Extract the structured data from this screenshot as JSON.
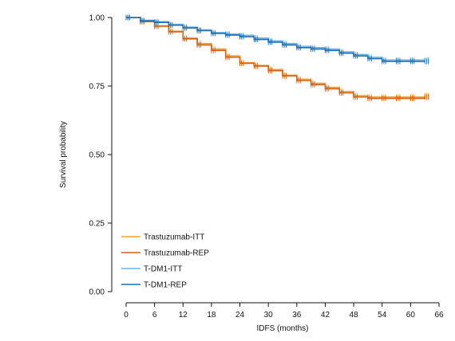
{
  "chart_data": {
    "type": "line",
    "xlabel": "IDFS (months)",
    "ylabel": "Survival probability",
    "xlim": [
      0,
      66
    ],
    "ylim": [
      0,
      1
    ],
    "x_ticks": [
      "0",
      "6",
      "12",
      "18",
      "24",
      "30",
      "36",
      "42",
      "48",
      "54",
      "60",
      "66"
    ],
    "y_ticks": [
      "0.00",
      "0.25",
      "0.50",
      "0.75",
      "1.00"
    ],
    "grid": false,
    "legend_position": "bottom-left",
    "series": [
      {
        "name": "Trastuzumab-ITT",
        "color": "#f0a030",
        "x": [
          0,
          3,
          6,
          9,
          12,
          15,
          18,
          21,
          24,
          27,
          30,
          33,
          36,
          39,
          42,
          45,
          48,
          51,
          54,
          57,
          60,
          63
        ],
        "y": [
          1.0,
          0.985,
          0.97,
          0.95,
          0.925,
          0.905,
          0.885,
          0.86,
          0.835,
          0.825,
          0.81,
          0.79,
          0.775,
          0.76,
          0.745,
          0.73,
          0.715,
          0.71,
          0.71,
          0.71,
          0.71,
          0.715
        ]
      },
      {
        "name": "Trastuzumab-REP",
        "color": "#d4601a",
        "x": [
          0,
          3,
          6,
          9,
          12,
          15,
          18,
          21,
          24,
          27,
          30,
          33,
          36,
          39,
          42,
          45,
          48,
          51,
          54,
          57,
          60,
          63
        ],
        "y": [
          1.0,
          0.985,
          0.968,
          0.948,
          0.922,
          0.9,
          0.88,
          0.855,
          0.833,
          0.823,
          0.806,
          0.787,
          0.77,
          0.755,
          0.74,
          0.725,
          0.71,
          0.705,
          0.705,
          0.705,
          0.705,
          0.71
        ]
      },
      {
        "name": "T-DM1-ITT",
        "color": "#6ab4e8",
        "x": [
          0,
          3,
          6,
          9,
          12,
          15,
          18,
          21,
          24,
          27,
          30,
          33,
          36,
          39,
          42,
          45,
          48,
          51,
          54,
          57,
          60,
          63
        ],
        "y": [
          1.0,
          0.99,
          0.985,
          0.975,
          0.965,
          0.955,
          0.945,
          0.94,
          0.935,
          0.925,
          0.915,
          0.905,
          0.895,
          0.89,
          0.885,
          0.875,
          0.865,
          0.855,
          0.845,
          0.845,
          0.845,
          0.845
        ]
      },
      {
        "name": "T-DM1-REP",
        "color": "#1f6fb4",
        "x": [
          0,
          3,
          6,
          9,
          12,
          15,
          18,
          21,
          24,
          27,
          30,
          33,
          36,
          39,
          42,
          45,
          48,
          51,
          54,
          57,
          60,
          63
        ],
        "y": [
          1.0,
          0.988,
          0.982,
          0.972,
          0.962,
          0.952,
          0.942,
          0.936,
          0.93,
          0.92,
          0.91,
          0.9,
          0.89,
          0.885,
          0.88,
          0.87,
          0.86,
          0.85,
          0.84,
          0.84,
          0.84,
          0.84
        ]
      }
    ]
  }
}
